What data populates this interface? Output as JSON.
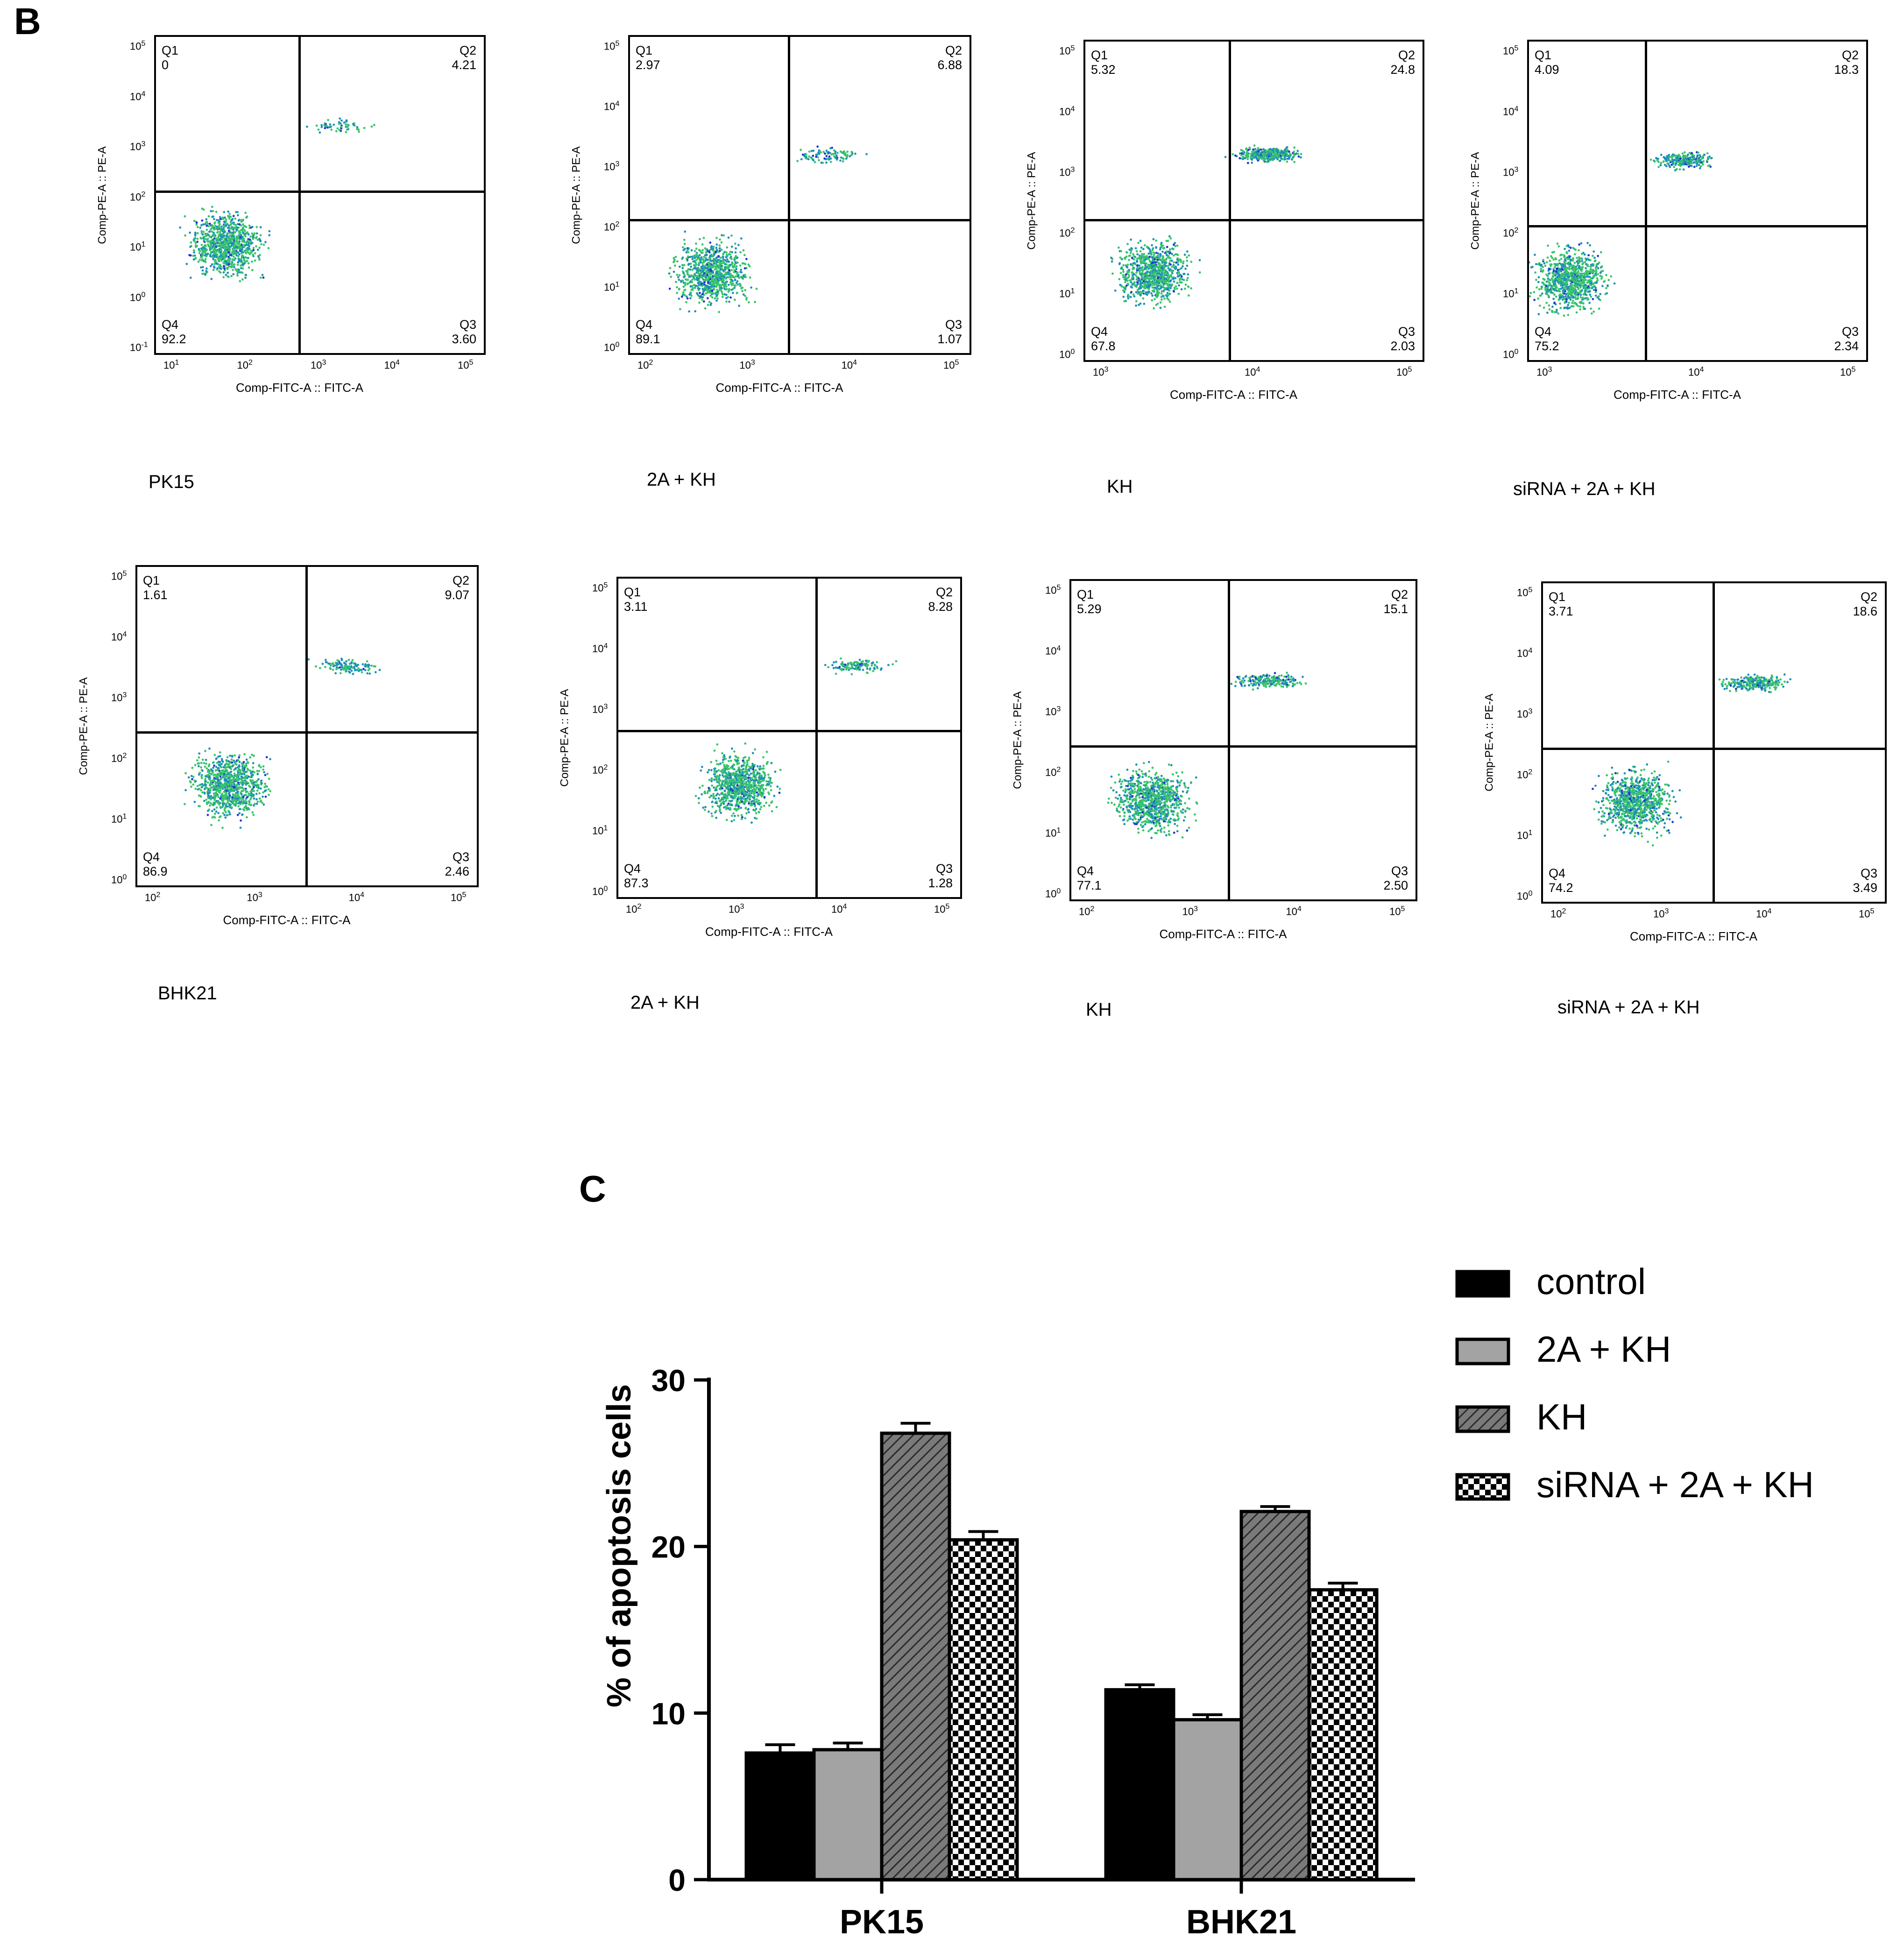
{
  "labels": {
    "panel_b": "B",
    "panel_c": "C"
  },
  "facs": {
    "xlabel": "Comp-FITC-A :: FITC-A",
    "ylabel": "Comp-PE-A :: PE-A",
    "plots": [
      {
        "name": "PK15",
        "q1": "0",
        "q2": "4.21",
        "q3": "3.60",
        "q4": "92.2",
        "xticks": [
          [
            "10",
            "1"
          ],
          [
            "10",
            "2"
          ],
          [
            "10",
            "3"
          ],
          [
            "10",
            "4"
          ],
          [
            "10",
            "5"
          ]
        ],
        "yticks": [
          [
            "10",
            "5"
          ],
          [
            "10",
            "4"
          ],
          [
            "10",
            "3"
          ],
          [
            "10",
            "2"
          ],
          [
            "10",
            "1"
          ],
          [
            "10",
            "0"
          ],
          [
            "10",
            "-1"
          ]
        ]
      },
      {
        "name": "2A + KH",
        "q1": "2.97",
        "q2": "6.88",
        "q3": "1.07",
        "q4": "89.1",
        "xticks": [
          [
            "10",
            "2"
          ],
          [
            "10",
            "3"
          ],
          [
            "10",
            "4"
          ],
          [
            "10",
            "5"
          ]
        ],
        "yticks": [
          [
            "10",
            "5"
          ],
          [
            "10",
            "4"
          ],
          [
            "10",
            "3"
          ],
          [
            "10",
            "2"
          ],
          [
            "10",
            "1"
          ],
          [
            "10",
            "0"
          ]
        ]
      },
      {
        "name": "KH",
        "q1": "5.32",
        "q2": "24.8",
        "q3": "2.03",
        "q4": "67.8",
        "xticks": [
          [
            "10",
            "3"
          ],
          [
            "10",
            "4"
          ],
          [
            "10",
            "5"
          ]
        ],
        "yticks": [
          [
            "10",
            "5"
          ],
          [
            "10",
            "4"
          ],
          [
            "10",
            "3"
          ],
          [
            "10",
            "2"
          ],
          [
            "10",
            "1"
          ],
          [
            "10",
            "0"
          ]
        ]
      },
      {
        "name": "siRNA + 2A + KH",
        "q1": "4.09",
        "q2": "18.3",
        "q3": "2.34",
        "q4": "75.2",
        "xticks": [
          [
            "10",
            "3"
          ],
          [
            "10",
            "4"
          ],
          [
            "10",
            "5"
          ]
        ],
        "yticks": [
          [
            "10",
            "5"
          ],
          [
            "10",
            "4"
          ],
          [
            "10",
            "3"
          ],
          [
            "10",
            "2"
          ],
          [
            "10",
            "1"
          ],
          [
            "10",
            "0"
          ]
        ]
      },
      {
        "name": "BHK21",
        "q1": "1.61",
        "q2": "9.07",
        "q3": "2.46",
        "q4": "86.9",
        "xticks": [
          [
            "10",
            "2"
          ],
          [
            "10",
            "3"
          ],
          [
            "10",
            "4"
          ],
          [
            "10",
            "5"
          ]
        ],
        "yticks": [
          [
            "10",
            "5"
          ],
          [
            "10",
            "4"
          ],
          [
            "10",
            "3"
          ],
          [
            "10",
            "2"
          ],
          [
            "10",
            "1"
          ],
          [
            "10",
            "0"
          ]
        ]
      },
      {
        "name": "2A + KH",
        "q1": "3.11",
        "q2": "8.28",
        "q3": "1.28",
        "q4": "87.3",
        "xticks": [
          [
            "10",
            "2"
          ],
          [
            "10",
            "3"
          ],
          [
            "10",
            "4"
          ],
          [
            "10",
            "5"
          ]
        ],
        "yticks": [
          [
            "10",
            "5"
          ],
          [
            "10",
            "4"
          ],
          [
            "10",
            "3"
          ],
          [
            "10",
            "2"
          ],
          [
            "10",
            "1"
          ],
          [
            "10",
            "0"
          ]
        ]
      },
      {
        "name": "KH",
        "q1": "5.29",
        "q2": "15.1",
        "q3": "2.50",
        "q4": "77.1",
        "xticks": [
          [
            "10",
            "2"
          ],
          [
            "10",
            "3"
          ],
          [
            "10",
            "4"
          ],
          [
            "10",
            "5"
          ]
        ],
        "yticks": [
          [
            "10",
            "5"
          ],
          [
            "10",
            "4"
          ],
          [
            "10",
            "3"
          ],
          [
            "10",
            "2"
          ],
          [
            "10",
            "1"
          ],
          [
            "10",
            "0"
          ]
        ]
      },
      {
        "name": "siRNA + 2A + KH",
        "q1": "3.71",
        "q2": "18.6",
        "q3": "3.49",
        "q4": "74.2",
        "xticks": [
          [
            "10",
            "2"
          ],
          [
            "10",
            "3"
          ],
          [
            "10",
            "4"
          ],
          [
            "10",
            "5"
          ]
        ],
        "yticks": [
          [
            "10",
            "5"
          ],
          [
            "10",
            "4"
          ],
          [
            "10",
            "3"
          ],
          [
            "10",
            "2"
          ],
          [
            "10",
            "1"
          ],
          [
            "10",
            "0"
          ]
        ]
      }
    ]
  },
  "chart_data": {
    "type": "bar",
    "categories": [
      "PK15",
      "BHK21"
    ],
    "ylabel": "% of apoptosis cells",
    "ylim": [
      0,
      30
    ],
    "yticks": [
      0,
      10,
      20,
      30
    ],
    "legend_position": "top-right",
    "series": [
      {
        "name": "control",
        "values": [
          7.6,
          11.4
        ],
        "errors": [
          0.5,
          0.3
        ],
        "pattern": "solid-black"
      },
      {
        "name": "2A + KH",
        "values": [
          7.8,
          9.6
        ],
        "errors": [
          0.4,
          0.3
        ],
        "pattern": "solid-gray"
      },
      {
        "name": "KH",
        "values": [
          26.8,
          22.1
        ],
        "errors": [
          0.6,
          0.3
        ],
        "pattern": "diagonal-hatch"
      },
      {
        "name": "siRNA + 2A + KH",
        "values": [
          20.4,
          17.4
        ],
        "errors": [
          0.5,
          0.4
        ],
        "pattern": "checkerboard"
      }
    ]
  }
}
